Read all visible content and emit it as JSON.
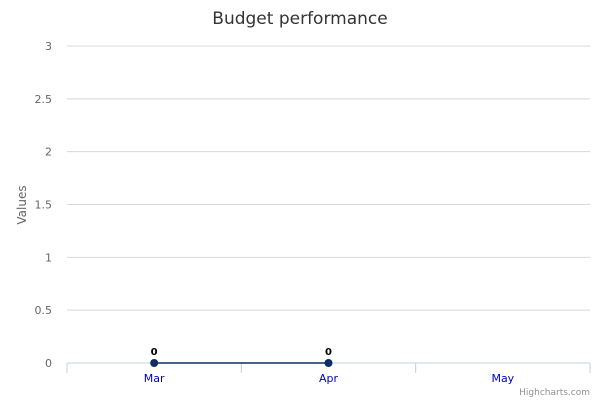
{
  "chart_data": {
    "type": "line",
    "title": "Budget performance",
    "ylabel": "Values",
    "xlabel": "",
    "categories": [
      "Mar",
      "Apr",
      "May"
    ],
    "series": [
      {
        "values": [
          0,
          0,
          null
        ],
        "color": "#0d2f63"
      }
    ],
    "ylim": [
      0,
      3
    ],
    "yticks": [
      "0",
      "0.5",
      "1",
      "1.5",
      "2",
      "2.5",
      "3"
    ],
    "grid": true,
    "legend": "none",
    "data_labels": [
      "0",
      "0",
      ""
    ],
    "colors": {
      "grid": "#d8d8d8",
      "axis": "#c0d0e0",
      "tick_text": "#666666",
      "category_text": "#0000cc",
      "title": "#333333"
    }
  },
  "credits": "Highcharts.com"
}
